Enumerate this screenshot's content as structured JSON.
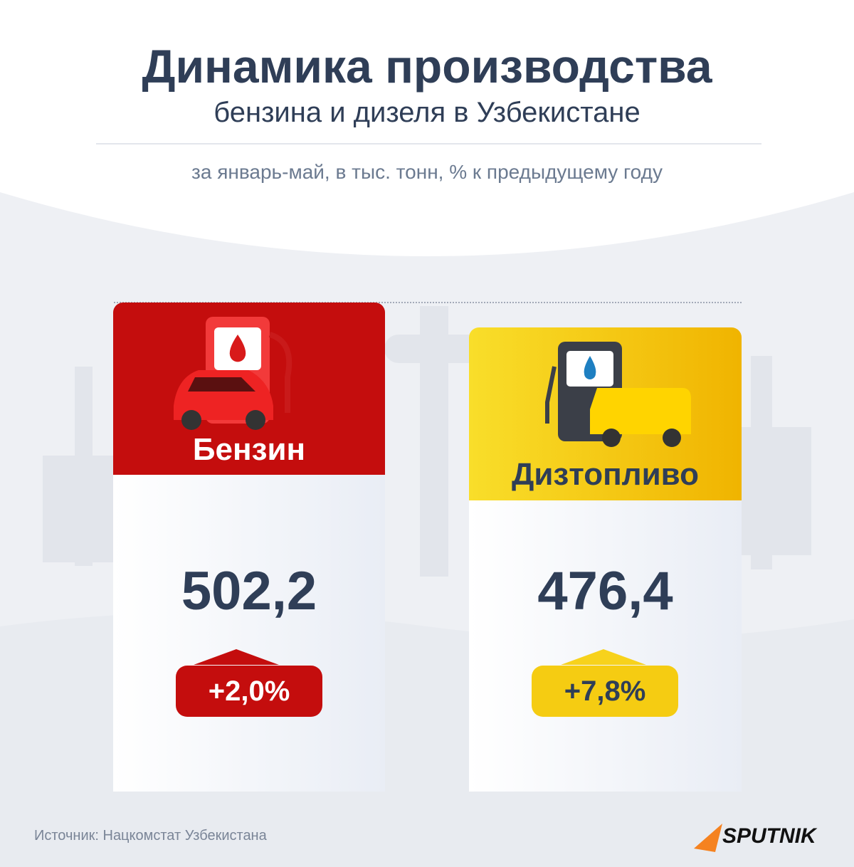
{
  "header": {
    "title": "Динамика производства",
    "subtitle": "бензина и дизеля в Узбекистане",
    "note": "за январь-май, в тыс. тонн, % к предыдущему году"
  },
  "items": [
    {
      "label": "Бензин",
      "value": "502,2",
      "change": "+2,0%"
    },
    {
      "label": "Дизтопливо",
      "value": "476,4",
      "change": "+7,8%"
    }
  ],
  "footer": {
    "source": "Источник: Нацкомстат Узбекистана",
    "logo": "SPUTNIK"
  }
}
